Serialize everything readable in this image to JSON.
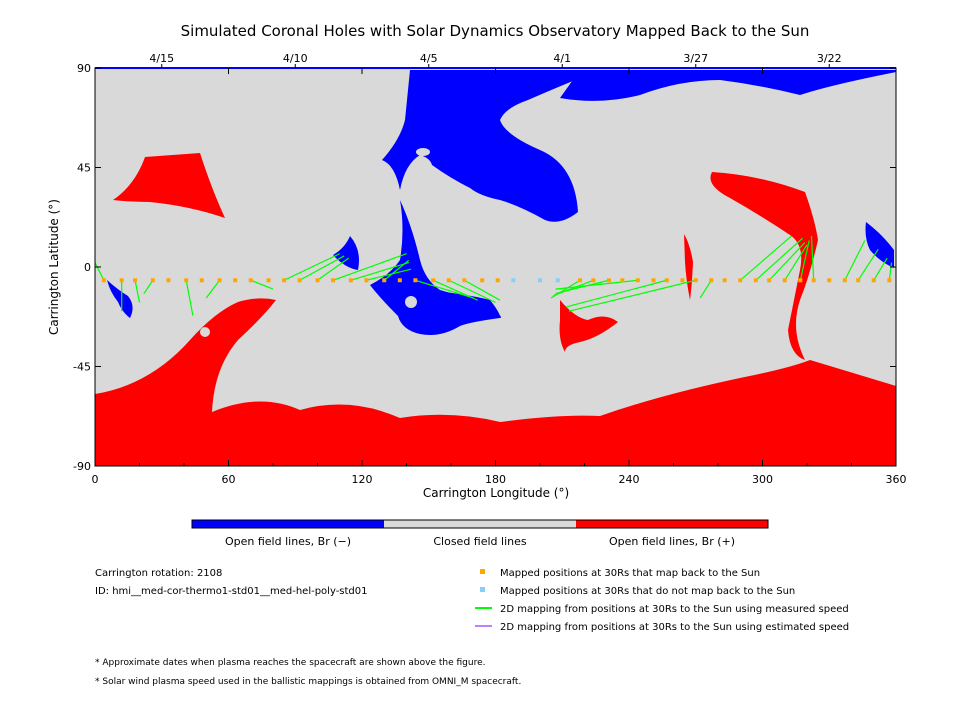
{
  "chart_data": {
    "type": "map",
    "title": "Simulated Coronal Holes with Solar Dynamics Observatory Mapped Back to the Sun",
    "xlabel": "Carrington Longitude (°)",
    "ylabel": "Carrington Latitude (°)",
    "xlim": [
      0,
      360
    ],
    "ylim": [
      -90,
      90
    ],
    "x_ticks": [
      "0",
      "60",
      "120",
      "180",
      "240",
      "300",
      "360"
    ],
    "x_tick_values": [
      0,
      60,
      120,
      180,
      240,
      300,
      360
    ],
    "y_ticks": [
      "90",
      "45",
      "0",
      "-45",
      "-90"
    ],
    "y_tick_values": [
      90,
      45,
      0,
      -45,
      -90
    ],
    "top_axis_dates": [
      {
        "label": "4/15",
        "lon": 30
      },
      {
        "label": "4/10",
        "lon": 90
      },
      {
        "label": "4/5",
        "lon": 150
      },
      {
        "label": "4/1",
        "lon": 210
      },
      {
        "label": "3/27",
        "lon": 270
      },
      {
        "label": "3/22",
        "lon": 330
      }
    ],
    "colors": {
      "closed": "#d9d9d9",
      "open_negative": "#0000ff",
      "open_positive": "#ff0000",
      "mapped_point": "#ffa500",
      "unmapped_point": "#87cefa",
      "measured_line": "#00ff00",
      "estimated_line": "#bf80ff"
    },
    "colorbar": [
      {
        "label": "Open field lines, Br (−)",
        "color": "#0000ff"
      },
      {
        "label": "Closed field lines",
        "color": "#d9d9d9"
      },
      {
        "label": "Open field lines, Br (+)",
        "color": "#ff0000"
      }
    ],
    "spacecraft_track_latitude": -6,
    "mapped_longitudes": [
      4,
      12,
      18,
      26,
      33,
      41,
      48,
      56,
      63,
      70,
      78,
      85,
      92,
      100,
      107,
      115,
      122,
      130,
      137,
      144,
      152,
      159,
      166,
      174,
      181,
      218,
      224,
      231,
      237,
      244,
      251,
      257,
      264,
      270,
      277,
      283,
      290,
      297,
      303,
      310,
      317,
      323,
      330,
      337,
      343,
      350,
      357
    ],
    "unmapped_longitudes": [
      188,
      200,
      208
    ],
    "mappings": [
      {
        "from": 4,
        "to": [
          0,
          2
        ]
      },
      {
        "from": 12,
        "to": [
          12,
          -20
        ]
      },
      {
        "from": 18,
        "to": [
          20,
          -16
        ]
      },
      {
        "from": 26,
        "to": [
          22,
          -12
        ]
      },
      {
        "from": 41,
        "to": [
          44,
          -22
        ]
      },
      {
        "from": 56,
        "to": [
          50,
          -14
        ]
      },
      {
        "from": 70,
        "to": [
          80,
          -10
        ]
      },
      {
        "from": 85,
        "to": [
          110,
          6
        ]
      },
      {
        "from": 92,
        "to": [
          112,
          5
        ]
      },
      {
        "from": 100,
        "to": [
          114,
          4
        ]
      },
      {
        "from": 107,
        "to": [
          140,
          6
        ]
      },
      {
        "from": 115,
        "to": [
          141,
          2
        ]
      },
      {
        "from": 122,
        "to": [
          142,
          -1
        ]
      },
      {
        "from": 130,
        "to": [
          141,
          3
        ]
      },
      {
        "from": 144,
        "to": [
          170,
          -14
        ]
      },
      {
        "from": 152,
        "to": [
          172,
          -15
        ]
      },
      {
        "from": 159,
        "to": [
          180,
          -16
        ]
      },
      {
        "from": 166,
        "to": [
          182,
          -15
        ]
      },
      {
        "from": 218,
        "to": [
          205,
          -14
        ]
      },
      {
        "from": 224,
        "to": [
          206,
          -13
        ]
      },
      {
        "from": 231,
        "to": [
          207,
          -12
        ]
      },
      {
        "from": 244,
        "to": [
          207,
          -10
        ]
      },
      {
        "from": 257,
        "to": [
          212,
          -18
        ]
      },
      {
        "from": 270,
        "to": [
          213,
          -20
        ]
      },
      {
        "from": 277,
        "to": [
          272,
          -14
        ]
      },
      {
        "from": 290,
        "to": [
          313,
          14
        ]
      },
      {
        "from": 297,
        "to": [
          318,
          13
        ]
      },
      {
        "from": 303,
        "to": [
          319,
          11
        ]
      },
      {
        "from": 310,
        "to": [
          320,
          10
        ]
      },
      {
        "from": 317,
        "to": [
          321,
          12
        ]
      },
      {
        "from": 323,
        "to": [
          322,
          14
        ]
      },
      {
        "from": 337,
        "to": [
          346,
          12
        ]
      },
      {
        "from": 343,
        "to": [
          352,
          8
        ]
      },
      {
        "from": 350,
        "to": [
          356,
          4
        ]
      },
      {
        "from": 357,
        "to": [
          358,
          2
        ]
      }
    ]
  },
  "colorbar_labels": {
    "negative": "Open field lines, Br (−)",
    "closed": "Closed field lines",
    "positive": "Open field lines, Br (+)"
  },
  "info": {
    "rotation": "Carrington rotation: 2108",
    "id": "ID: hmi__med-cor-thermo1-std01__med-hel-poly-std01"
  },
  "legend": [
    {
      "label": "Mapped positions at 30Rs that map back to the Sun",
      "type": "square",
      "color": "#ffa500"
    },
    {
      "label": "Mapped positions at 30Rs that do not map back to the Sun",
      "type": "square",
      "color": "#87cefa"
    },
    {
      "label": "2D mapping from positions at 30Rs to the Sun using measured speed",
      "type": "line",
      "color": "#00ff00"
    },
    {
      "label": "2D mapping from positions at 30Rs to the Sun using estimated speed",
      "type": "line",
      "color": "#bf80ff"
    }
  ],
  "notes": [
    "* Approximate dates when plasma reaches the spacecraft are shown above the figure.",
    "* Solar wind plasma speed used in the ballistic mappings is obtained from OMNI_M spacecraft."
  ]
}
